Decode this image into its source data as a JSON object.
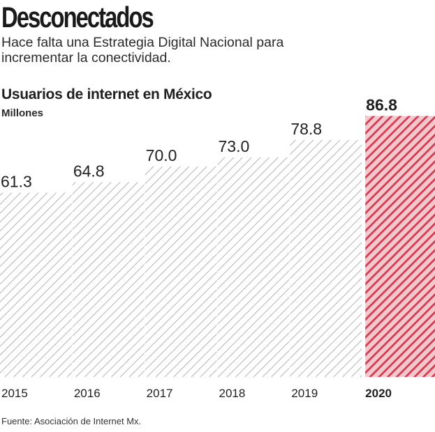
{
  "header": {
    "title": "Desconectados",
    "subtitle": "Hace falta una Estrategia Digital Nacional para incrementar la conectividad."
  },
  "colors": {
    "regular_hatch": "#9a9a9a",
    "highlight_hatch": "#d23a4e",
    "text": "#1f1f1f"
  },
  "chart_data": {
    "type": "bar",
    "title": "Usuarios de internet en México",
    "ylabel": "Millones",
    "xlabel": "",
    "categories": [
      "2015",
      "2016",
      "2017",
      "2018",
      "2019",
      "2020"
    ],
    "values": [
      61.3,
      64.8,
      70.0,
      73.0,
      78.8,
      86.8
    ],
    "value_labels": [
      "61.3",
      "64.8",
      "70.0",
      "73.0",
      "78.8",
      "86.8"
    ],
    "highlight": "2020",
    "ylim": [
      0,
      92
    ],
    "grid": false,
    "legend": "none"
  },
  "footer": {
    "source": "Fuente: Asociación de Internet Mx."
  }
}
